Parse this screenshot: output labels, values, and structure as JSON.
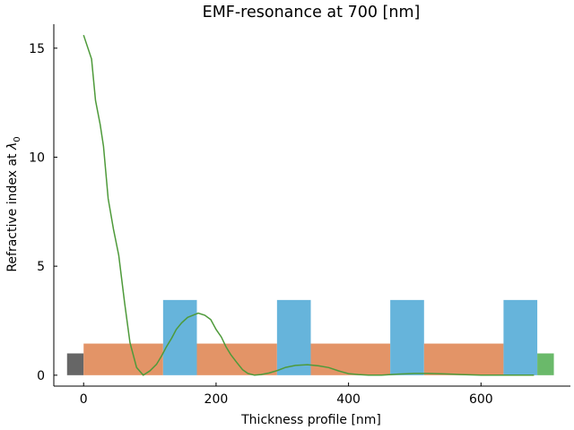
{
  "chart_data": {
    "type": "line",
    "title": "EMF-resonance at 700 [nm]",
    "xlabel": "Thickness profile [nm]",
    "ylabel_main": "Refractive index at ",
    "ylabel_symbol": "λ",
    "ylabel_sub": "0",
    "xlim": [
      -45,
      735
    ],
    "ylim": [
      -0.5,
      16.1
    ],
    "xticks": [
      0,
      200,
      400,
      600
    ],
    "yticks": [
      0,
      5,
      10,
      15
    ],
    "grid": false,
    "colors": {
      "substrate": "#666666",
      "low_index": "#e39467",
      "high_index": "#66b4db",
      "superstrate": "#6ab96a",
      "field_line": "#4e9a3a"
    },
    "layers": [
      {
        "role": "substrate",
        "x0": -25,
        "x1": 0,
        "n": 1.0
      },
      {
        "role": "low_index",
        "x0": 0,
        "x1": 120,
        "n": 1.45
      },
      {
        "role": "high_index",
        "x0": 120,
        "x1": 171,
        "n": 3.45
      },
      {
        "role": "low_index",
        "x0": 171,
        "x1": 292,
        "n": 1.45
      },
      {
        "role": "high_index",
        "x0": 292,
        "x1": 343,
        "n": 3.45
      },
      {
        "role": "low_index",
        "x0": 343,
        "x1": 463,
        "n": 1.45
      },
      {
        "role": "high_index",
        "x0": 463,
        "x1": 514,
        "n": 3.45
      },
      {
        "role": "low_index",
        "x0": 514,
        "x1": 634,
        "n": 1.45
      },
      {
        "role": "high_index",
        "x0": 634,
        "x1": 685,
        "n": 3.45
      },
      {
        "role": "superstrate",
        "x0": 685,
        "x1": 710,
        "n": 1.0
      }
    ],
    "field_profile": {
      "x": [
        0,
        12,
        18,
        25,
        30,
        37,
        45,
        53,
        62,
        70,
        80,
        90,
        100,
        110,
        118,
        125,
        133,
        140,
        148,
        157,
        165,
        173,
        183,
        192,
        200,
        208,
        215,
        222,
        232,
        240,
        248,
        258,
        268,
        280,
        293,
        305,
        320,
        338,
        355,
        370,
        385,
        400,
        415,
        430,
        450,
        475,
        500,
        520,
        545,
        570,
        600,
        630,
        660,
        680
      ],
      "y": [
        15.6,
        14.5,
        12.6,
        11.5,
        10.5,
        8.1,
        6.7,
        5.5,
        3.3,
        1.5,
        0.35,
        0.0,
        0.2,
        0.5,
        0.9,
        1.3,
        1.7,
        2.1,
        2.4,
        2.65,
        2.75,
        2.85,
        2.75,
        2.55,
        2.1,
        1.75,
        1.3,
        0.95,
        0.55,
        0.25,
        0.08,
        0.0,
        0.03,
        0.1,
        0.22,
        0.36,
        0.45,
        0.48,
        0.43,
        0.35,
        0.2,
        0.07,
        0.03,
        0.0,
        0.0,
        0.05,
        0.08,
        0.08,
        0.06,
        0.03,
        0.0,
        0.0,
        0.0,
        0.0
      ]
    }
  }
}
